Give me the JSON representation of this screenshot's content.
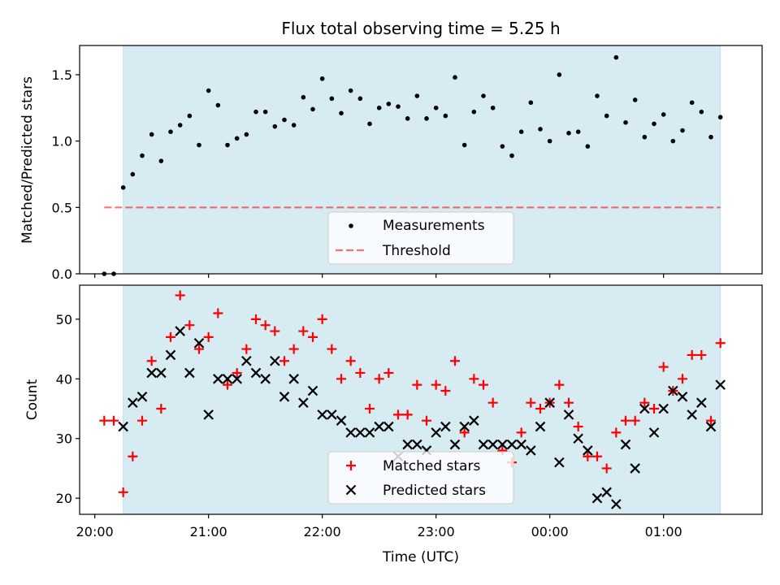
{
  "figure": {
    "title": "Flux total observing time = 5.25 h"
  },
  "colors": {
    "shade": "#add8e6",
    "measurements": "#000000",
    "threshold": "#ff0000",
    "matched": "#ff0000",
    "predicted": "#000000"
  },
  "chart_data": [
    {
      "type": "scatter",
      "ylabel": "Matched/Predicted stars",
      "xlabel": "",
      "xlim": [
        "19:52",
        "01:52"
      ],
      "ylim": [
        0,
        1.72
      ],
      "yticks": [
        "0.0",
        "0.5",
        "1.0",
        "1.5"
      ],
      "observing_window": [
        "20:15",
        "01:30"
      ],
      "threshold": {
        "name": "Threshold",
        "value": 0.5,
        "x_range": [
          "20:05",
          "01:30"
        ]
      },
      "legend": {
        "placement": "bottom-center",
        "entries": [
          "Measurements",
          "Threshold"
        ]
      },
      "series": [
        {
          "name": "Measurements",
          "x": [
            "20:05",
            "20:10",
            "20:15",
            "20:20",
            "20:25",
            "20:30",
            "20:35",
            "20:40",
            "20:45",
            "20:50",
            "20:55",
            "21:00",
            "21:05",
            "21:10",
            "21:15",
            "21:20",
            "21:25",
            "21:30",
            "21:35",
            "21:40",
            "21:45",
            "21:50",
            "21:55",
            "22:00",
            "22:05",
            "22:10",
            "22:15",
            "22:20",
            "22:25",
            "22:30",
            "22:35",
            "22:40",
            "22:45",
            "22:50",
            "22:55",
            "23:00",
            "23:05",
            "23:10",
            "23:15",
            "23:20",
            "23:25",
            "23:30",
            "23:35",
            "23:40",
            "23:45",
            "23:50",
            "23:55",
            "00:00",
            "00:05",
            "00:10",
            "00:15",
            "00:20",
            "00:25",
            "00:30",
            "00:35",
            "00:40",
            "00:45",
            "00:50",
            "00:55",
            "01:00",
            "01:05",
            "01:10",
            "01:15",
            "01:20",
            "01:25",
            "01:30"
          ],
          "values": [
            0.0,
            0.0,
            0.65,
            0.75,
            0.89,
            1.05,
            0.85,
            1.07,
            1.12,
            1.19,
            0.97,
            1.38,
            1.27,
            0.97,
            1.02,
            1.05,
            1.22,
            1.22,
            1.11,
            1.16,
            1.12,
            1.33,
            1.24,
            1.47,
            1.32,
            1.21,
            1.38,
            1.32,
            1.13,
            1.25,
            1.28,
            1.26,
            1.17,
            1.34,
            1.17,
            1.25,
            1.19,
            1.48,
            0.97,
            1.22,
            1.34,
            1.25,
            0.96,
            0.89,
            1.07,
            1.29,
            1.09,
            1.0,
            1.5,
            1.06,
            1.07,
            0.96,
            1.34,
            1.19,
            1.63,
            1.14,
            1.31,
            1.03,
            1.13,
            1.2,
            1.0,
            1.08,
            1.29,
            1.22,
            1.03,
            1.18
          ]
        }
      ]
    },
    {
      "type": "scatter",
      "ylabel": "Count",
      "xlabel": "Time (UTC)",
      "xlim": [
        "19:52",
        "01:52"
      ],
      "ylim": [
        17.3,
        55.7
      ],
      "yticks": [
        "20",
        "30",
        "40",
        "50"
      ],
      "xticks": [
        "20:00",
        "21:00",
        "22:00",
        "23:00",
        "00:00",
        "01:00"
      ],
      "observing_window": [
        "20:15",
        "01:30"
      ],
      "legend": {
        "placement": "bottom-center",
        "entries": [
          "Matched stars",
          "Predicted stars"
        ]
      },
      "series": [
        {
          "name": "Matched stars",
          "x": [
            "20:05",
            "20:10",
            "20:15",
            "20:20",
            "20:25",
            "20:30",
            "20:35",
            "20:40",
            "20:45",
            "20:50",
            "20:55",
            "21:00",
            "21:05",
            "21:10",
            "21:15",
            "21:20",
            "21:25",
            "21:30",
            "21:35",
            "21:40",
            "21:45",
            "21:50",
            "21:55",
            "22:00",
            "22:05",
            "22:10",
            "22:15",
            "22:20",
            "22:25",
            "22:30",
            "22:35",
            "22:40",
            "22:45",
            "22:50",
            "22:55",
            "23:00",
            "23:05",
            "23:10",
            "23:15",
            "23:20",
            "23:25",
            "23:30",
            "23:35",
            "23:40",
            "23:45",
            "23:50",
            "23:55",
            "00:00",
            "00:05",
            "00:10",
            "00:15",
            "00:20",
            "00:25",
            "00:30",
            "00:35",
            "00:40",
            "00:45",
            "00:50",
            "00:55",
            "01:00",
            "01:05",
            "01:10",
            "01:15",
            "01:20",
            "01:25",
            "01:30"
          ],
          "values": [
            33,
            33,
            21,
            27,
            33,
            43,
            35,
            47,
            54,
            49,
            45,
            47,
            51,
            39,
            41,
            45,
            50,
            49,
            48,
            43,
            45,
            48,
            47,
            50,
            45,
            40,
            43,
            41,
            35,
            40,
            41,
            34,
            34,
            39,
            33,
            39,
            38,
            43,
            31,
            40,
            39,
            36,
            28,
            26,
            31,
            36,
            35,
            36,
            39,
            36,
            32,
            27,
            27,
            25,
            31,
            33,
            33,
            36,
            35,
            42,
            38,
            40,
            44,
            44,
            33,
            46
          ]
        },
        {
          "name": "Predicted stars",
          "x": [
            "20:15",
            "20:20",
            "20:25",
            "20:30",
            "20:35",
            "20:40",
            "20:45",
            "20:50",
            "20:55",
            "21:00",
            "21:05",
            "21:10",
            "21:15",
            "21:20",
            "21:25",
            "21:30",
            "21:35",
            "21:40",
            "21:45",
            "21:50",
            "21:55",
            "22:00",
            "22:05",
            "22:10",
            "22:15",
            "22:20",
            "22:25",
            "22:30",
            "22:35",
            "22:40",
            "22:45",
            "22:50",
            "22:55",
            "23:00",
            "23:05",
            "23:10",
            "23:15",
            "23:20",
            "23:25",
            "23:30",
            "23:35",
            "23:40",
            "23:45",
            "23:50",
            "23:55",
            "00:00",
            "00:05",
            "00:10",
            "00:15",
            "00:20",
            "00:25",
            "00:30",
            "00:35",
            "00:40",
            "00:45",
            "00:50",
            "00:55",
            "01:00",
            "01:05",
            "01:10",
            "01:15",
            "01:20",
            "01:25",
            "01:30"
          ],
          "values": [
            32,
            36,
            37,
            41,
            41,
            44,
            48,
            41,
            46,
            34,
            40,
            40,
            40,
            43,
            41,
            40,
            43,
            37,
            40,
            36,
            38,
            34,
            34,
            33,
            31,
            31,
            31,
            32,
            32,
            27,
            29,
            29,
            28,
            31,
            32,
            29,
            32,
            33,
            29,
            29,
            29,
            29,
            29,
            28,
            32,
            36,
            26,
            34,
            30,
            28,
            20,
            21,
            19,
            29,
            25,
            35,
            31,
            35,
            38,
            37,
            34,
            36,
            32,
            39
          ]
        }
      ]
    }
  ]
}
